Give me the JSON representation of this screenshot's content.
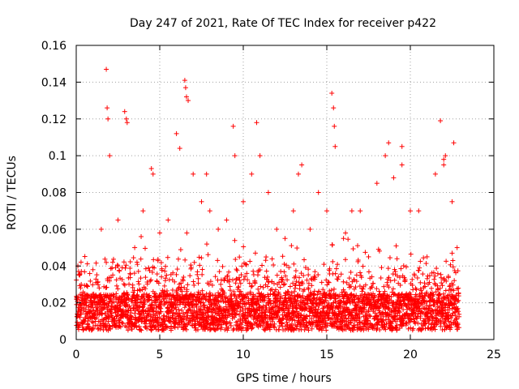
{
  "chart_data": {
    "type": "scatter",
    "title": "Day 247 of 2021, Rate Of TEC Index for receiver p422",
    "xlabel": "GPS time / hours",
    "ylabel": "ROTI / TECUs",
    "xlim": [
      0,
      25
    ],
    "ylim": [
      0,
      0.16
    ],
    "xticks": [
      0,
      5,
      10,
      15,
      20,
      25
    ],
    "yticks": [
      0,
      0.02,
      0.04,
      0.06,
      0.08,
      0.1,
      0.12,
      0.14,
      0.16
    ],
    "xtick_labels": [
      "0",
      "5",
      "10",
      "15",
      "20",
      "25"
    ],
    "ytick_labels": [
      "0",
      "0.02",
      "0.04",
      "0.06",
      "0.08",
      "0.1",
      "0.12",
      "0.14",
      "0.16"
    ],
    "grid": true,
    "marker": "+",
    "color": "#ff0000",
    "series": [
      {
        "x": [
          1.8,
          1.85,
          1.9,
          2.9,
          3.0,
          3.05,
          6.5,
          6.55,
          6.6,
          6.7,
          9.4,
          10.8,
          15.3,
          15.4,
          15.45,
          18.7,
          19.5,
          21.8,
          22.0,
          22.1,
          22.6,
          0.1,
          0.2,
          0.3,
          0.5,
          1.0,
          1.5,
          2.0,
          2.5,
          3.5,
          4.0,
          4.5,
          4.6,
          5.0,
          5.5,
          6.0,
          6.2,
          7.0,
          7.5,
          7.8,
          8.0,
          8.5,
          9.0,
          9.5,
          10.0,
          10.5,
          11.0,
          11.5,
          12.0,
          12.5,
          13.0,
          13.3,
          13.5,
          14.0,
          14.5,
          15.0,
          15.5,
          16.0,
          16.5,
          17.0,
          17.5,
          18.0,
          18.5,
          19.0,
          19.5,
          20.0,
          20.5,
          21.0,
          21.5,
          22.0,
          22.5,
          22.8
        ],
        "y": [
          0.147,
          0.126,
          0.12,
          0.124,
          0.12,
          0.118,
          0.141,
          0.137,
          0.132,
          0.13,
          0.116,
          0.118,
          0.134,
          0.126,
          0.116,
          0.107,
          0.105,
          0.119,
          0.098,
          0.1,
          0.107,
          0.04,
          0.035,
          0.03,
          0.025,
          0.038,
          0.06,
          0.1,
          0.065,
          0.05,
          0.07,
          0.093,
          0.09,
          0.058,
          0.065,
          0.112,
          0.104,
          0.09,
          0.075,
          0.09,
          0.07,
          0.06,
          0.065,
          0.1,
          0.075,
          0.09,
          0.1,
          0.08,
          0.06,
          0.055,
          0.07,
          0.09,
          0.095,
          0.06,
          0.08,
          0.07,
          0.105,
          0.055,
          0.07,
          0.07,
          0.045,
          0.085,
          0.1,
          0.088,
          0.095,
          0.07,
          0.07,
          0.045,
          0.09,
          0.095,
          0.075,
          0.05
        ]
      }
    ]
  }
}
